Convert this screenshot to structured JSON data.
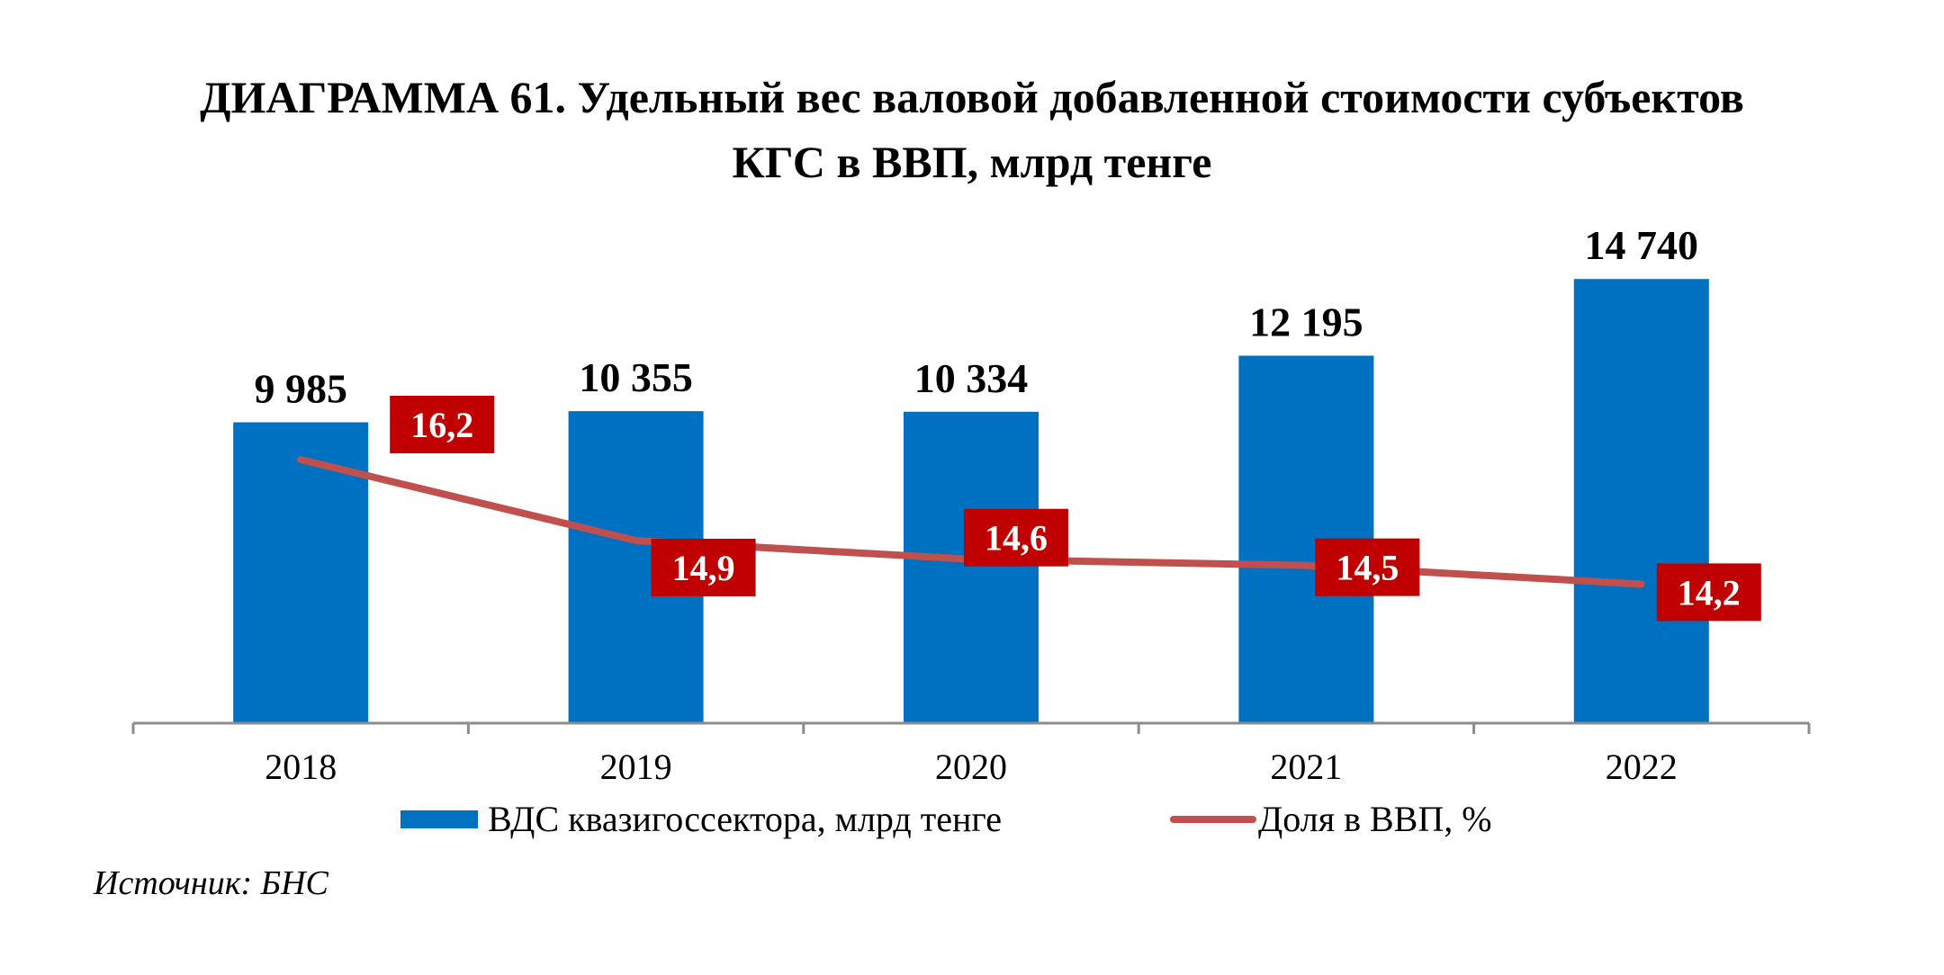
{
  "title_lines": [
    "ДИАГРАММА 61. Удельный вес валовой добавленной стоимости субъектов",
    "КГС в ВВП, млрд тенге"
  ],
  "source": "Источник: БНС",
  "colors": {
    "bar": "#0070C0",
    "line": "#C0504D",
    "label_box": "#C00000"
  },
  "chart_data": {
    "type": "bar",
    "categories": [
      "2018",
      "2019",
      "2020",
      "2021",
      "2022"
    ],
    "series": [
      {
        "name": "ВДС квазигоссектора, млрд тенге",
        "type": "bar",
        "values": [
          9985,
          10355,
          10334,
          12195,
          14740
        ],
        "labels": [
          "9 985",
          "10 355",
          "10 334",
          "12 195",
          "14 740"
        ]
      },
      {
        "name": "Доля в ВВП, %",
        "type": "line",
        "values": [
          16.2,
          14.9,
          14.6,
          14.5,
          14.2
        ],
        "labels": [
          "16,2",
          "14,9",
          "14,6",
          "14,5",
          "14,2"
        ]
      }
    ],
    "xlabel": "",
    "ylabel": "",
    "legend": "bottom"
  }
}
